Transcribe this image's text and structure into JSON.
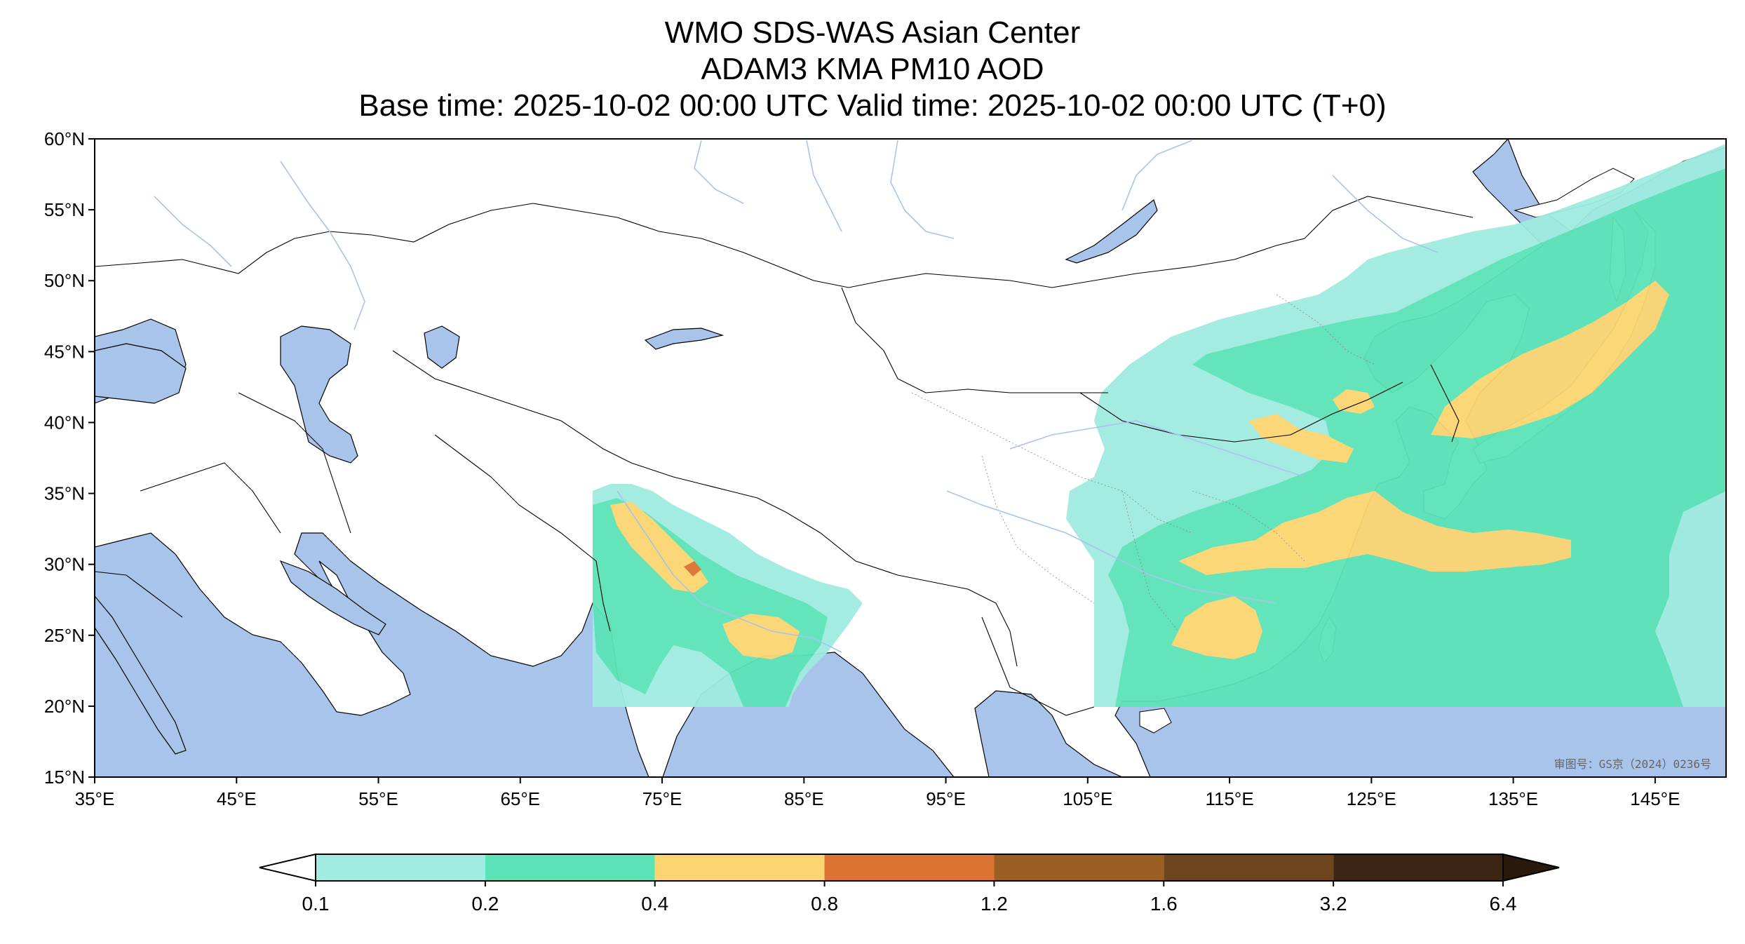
{
  "title": {
    "line1": "WMO SDS-WAS Asian Center",
    "line2": "ADAM3 KMA PM10 AOD",
    "line3": "Base time: 2025-10-02 00:00 UTC Valid time: 2025-10-02 00:00 UTC (T+0)"
  },
  "map": {
    "extent": {
      "lon": [
        35,
        150
      ],
      "lat": [
        15,
        60
      ]
    },
    "lon_ticks": [
      35,
      45,
      55,
      65,
      75,
      85,
      95,
      105,
      115,
      125,
      135,
      145
    ],
    "lon_labels": [
      "35°E",
      "45°E",
      "55°E",
      "65°E",
      "75°E",
      "85°E",
      "95°E",
      "105°E",
      "115°E",
      "125°E",
      "135°E",
      "145°E"
    ],
    "lat_ticks": [
      60,
      55,
      50,
      45,
      40,
      35,
      30,
      25,
      20,
      15
    ],
    "lat_labels": [
      "60°N",
      "55°N",
      "50°N",
      "45°N",
      "40°N",
      "35°N",
      "30°N",
      "25°N",
      "20°N",
      "15°N"
    ],
    "approval_text": "审图号：GS京（2024）0236号",
    "colors": {
      "ocean": "#a9c4ea",
      "land": "#ffffff",
      "borders": "#000000",
      "rivers": "#a9c4ea"
    }
  },
  "colorbar": {
    "bounds": [
      "0.1",
      "0.2",
      "0.4",
      "0.8",
      "1.2",
      "1.6",
      "3.2",
      "6.4"
    ],
    "colors": [
      "#a0ece0",
      "#5ce3b7",
      "#fbd571",
      "#db7332",
      "#9c5f23",
      "#6f4520",
      "#3d2513"
    ],
    "under_color": "#ffffff",
    "over_color": "#2a1a0c",
    "extend": "both"
  }
}
